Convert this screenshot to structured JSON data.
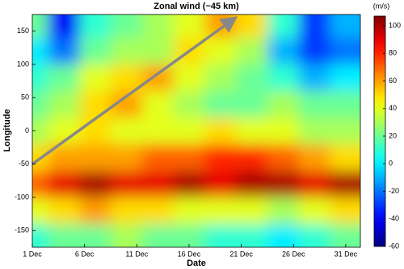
{
  "chart_data": {
    "type": "heatmap",
    "title": "Zonal wind (~45 km)",
    "x_label": "Date",
    "y_label": "Longitude",
    "colorbar_label": "(m/s)",
    "colormap": "jet",
    "x": [
      1,
      4,
      7,
      10,
      13,
      16,
      19,
      22,
      25,
      28,
      31
    ],
    "y": [
      160,
      120,
      80,
      40,
      0,
      -40,
      -80,
      -120,
      -160
    ],
    "z": [
      [
        20,
        -40,
        10,
        20,
        30,
        40,
        60,
        50,
        10,
        -30,
        -10
      ],
      [
        0,
        -20,
        20,
        30,
        30,
        50,
        40,
        30,
        -10,
        -30,
        -20
      ],
      [
        10,
        20,
        40,
        50,
        60,
        40,
        30,
        20,
        10,
        -10,
        0
      ],
      [
        20,
        30,
        50,
        60,
        40,
        30,
        20,
        20,
        30,
        20,
        20
      ],
      [
        30,
        40,
        50,
        40,
        40,
        40,
        50,
        40,
        40,
        30,
        30
      ],
      [
        50,
        60,
        60,
        60,
        70,
        70,
        80,
        80,
        70,
        60,
        50
      ],
      [
        70,
        90,
        100,
        90,
        90,
        100,
        90,
        100,
        100,
        90,
        100
      ],
      [
        40,
        50,
        60,
        50,
        50,
        40,
        40,
        40,
        30,
        40,
        50
      ],
      [
        10,
        20,
        20,
        30,
        20,
        20,
        10,
        10,
        0,
        10,
        20
      ]
    ],
    "xlim": [
      1,
      32.4
    ],
    "ylim": [
      -175,
      175
    ],
    "clim": [
      -60,
      107
    ],
    "xticks": [
      {
        "value": 1,
        "label": "1 Dec"
      },
      {
        "value": 6,
        "label": "6 Dec"
      },
      {
        "value": 11,
        "label": "11 Dec"
      },
      {
        "value": 16,
        "label": "16 Dec"
      },
      {
        "value": 21,
        "label": "21 Dec"
      },
      {
        "value": 26,
        "label": "26 Dec"
      },
      {
        "value": 31,
        "label": "31 Dec"
      }
    ],
    "yticks": [
      -150,
      -100,
      -50,
      0,
      50,
      100,
      150
    ],
    "colorbar_ticks": [
      -60,
      -40,
      -20,
      0,
      20,
      40,
      60,
      80,
      100
    ],
    "arrow": [
      [
        1,
        -50
      ],
      [
        20,
        165
      ]
    ],
    "arrow_color": "#888888"
  }
}
